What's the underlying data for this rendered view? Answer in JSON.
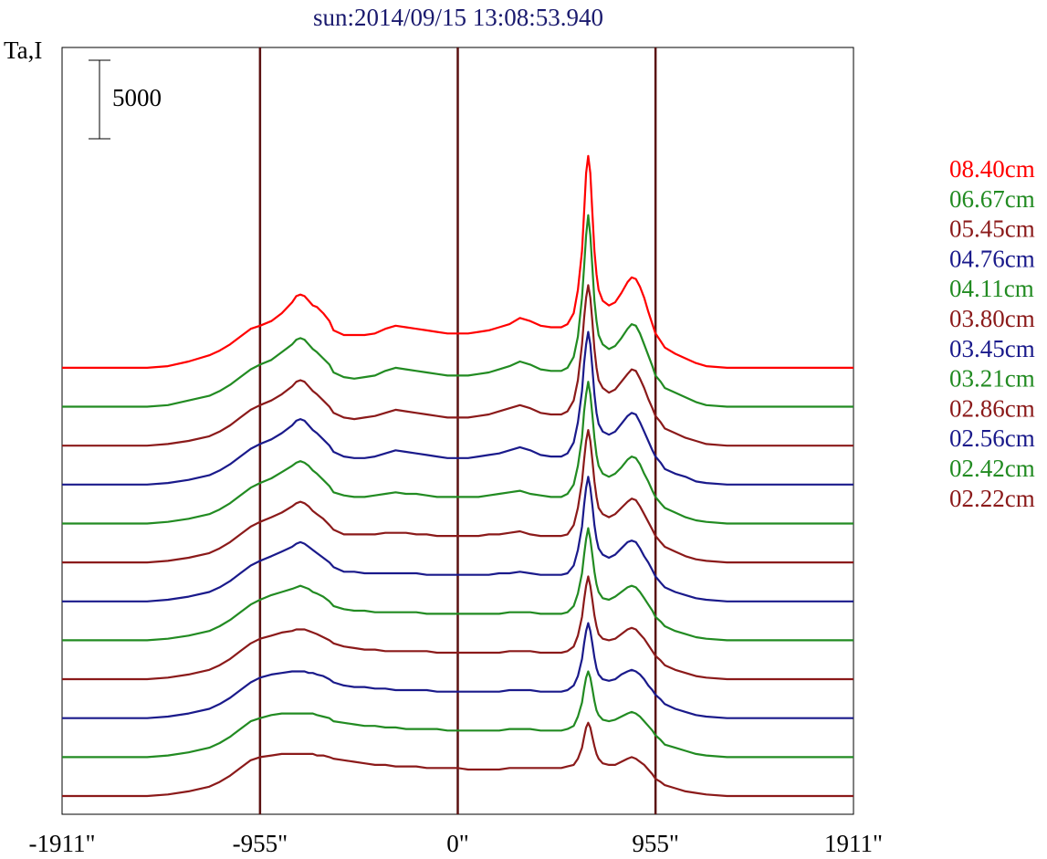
{
  "chart_data": {
    "type": "line",
    "title": "sun:2014/09/15 13:08:53.940",
    "ylabel": "Ta,I",
    "scale_bar_label": "5000",
    "x_tick_labels": [
      "-1911\"",
      "-955\"",
      "0\"",
      "955\"",
      "1911\""
    ],
    "x_ticks": [
      -1911,
      -955,
      0,
      955,
      1911
    ],
    "xlim": [
      -1911,
      1911
    ],
    "vlines": [
      -955,
      0,
      955
    ],
    "vline_color": "#5a1010",
    "grid": false,
    "legend_position": "right",
    "baseline_step": 2500,
    "scale_per_unit": 1.0,
    "x": [
      -1911,
      -1700,
      -1600,
      -1500,
      -1400,
      -1300,
      -1200,
      -1150,
      -1100,
      -1050,
      -1000,
      -955,
      -900,
      -850,
      -800,
      -780,
      -760,
      -740,
      -720,
      -700,
      -680,
      -650,
      -620,
      -600,
      -550,
      -500,
      -450,
      -400,
      -350,
      -300,
      -250,
      -200,
      -150,
      -100,
      -50,
      0,
      50,
      100,
      150,
      200,
      250,
      300,
      350,
      400,
      450,
      500,
      530,
      560,
      580,
      600,
      610,
      620,
      630,
      640,
      650,
      660,
      670,
      680,
      700,
      730,
      760,
      790,
      820,
      840,
      860,
      880,
      900,
      920,
      940,
      955,
      980,
      1000,
      1050,
      1100,
      1150,
      1200,
      1300,
      1400,
      1500,
      1600,
      1700,
      1800,
      1911
    ],
    "series": [
      {
        "name": "08.40cm",
        "color": "#ff0000",
        "values": [
          0,
          0,
          0,
          0,
          100,
          400,
          800,
          1100,
          1500,
          2000,
          2500,
          2700,
          3000,
          3500,
          4200,
          4600,
          4700,
          4600,
          4300,
          4000,
          3900,
          3500,
          3000,
          2400,
          2100,
          2100,
          2100,
          2200,
          2500,
          2700,
          2600,
          2500,
          2400,
          2300,
          2200,
          2200,
          2200,
          2300,
          2400,
          2600,
          2800,
          3200,
          3000,
          2700,
          2600,
          2600,
          2800,
          3500,
          5000,
          7500,
          10000,
          12500,
          13600,
          12500,
          10000,
          7500,
          6000,
          5000,
          4300,
          4000,
          4200,
          4800,
          5500,
          5800,
          5700,
          5200,
          4500,
          3600,
          2800,
          2200,
          1700,
          1300,
          900,
          600,
          300,
          100,
          0,
          0,
          0,
          0,
          0,
          0,
          0
        ]
      },
      {
        "name": "06.67cm",
        "color": "#228b22",
        "values": [
          0,
          0,
          0,
          0,
          100,
          400,
          700,
          1000,
          1400,
          1900,
          2400,
          2700,
          3000,
          3500,
          4000,
          4300,
          4400,
          4300,
          4000,
          3700,
          3500,
          3100,
          2700,
          2200,
          1900,
          1800,
          1900,
          2000,
          2300,
          2500,
          2400,
          2300,
          2200,
          2100,
          2000,
          2000,
          2000,
          2100,
          2200,
          2400,
          2600,
          2900,
          2700,
          2400,
          2300,
          2300,
          2500,
          3200,
          4500,
          7000,
          9000,
          11000,
          12300,
          11000,
          9000,
          6800,
          5500,
          4600,
          4000,
          3700,
          3900,
          4400,
          5000,
          5300,
          5200,
          4700,
          4000,
          3300,
          2600,
          2000,
          1600,
          1200,
          900,
          600,
          300,
          100,
          0,
          0,
          0,
          0,
          0,
          0,
          0
        ]
      },
      {
        "name": "05.45cm",
        "color": "#8b1a1a",
        "values": [
          0,
          0,
          0,
          0,
          100,
          300,
          600,
          900,
          1300,
          1800,
          2300,
          2600,
          2900,
          3300,
          3800,
          4100,
          4200,
          4100,
          3800,
          3500,
          3300,
          2900,
          2500,
          2100,
          1800,
          1700,
          1800,
          1900,
          2100,
          2300,
          2200,
          2100,
          2000,
          1900,
          1800,
          1800,
          1800,
          1900,
          2000,
          2200,
          2400,
          2600,
          2400,
          2100,
          2000,
          2000,
          2200,
          2900,
          4200,
          6500,
          8200,
          9500,
          10300,
          9500,
          8000,
          6200,
          5000,
          4200,
          3700,
          3400,
          3600,
          4100,
          4600,
          4900,
          4800,
          4300,
          3700,
          3000,
          2400,
          1900,
          1500,
          1100,
          800,
          500,
          300,
          100,
          0,
          0,
          0,
          0,
          0,
          0,
          0
        ]
      },
      {
        "name": "04.76cm",
        "color": "#1a1a8b",
        "values": [
          0,
          0,
          0,
          0,
          100,
          300,
          600,
          900,
          1300,
          1800,
          2300,
          2600,
          2900,
          3300,
          3800,
          4100,
          4200,
          4100,
          3800,
          3500,
          3300,
          2900,
          2500,
          2100,
          1800,
          1700,
          1700,
          1800,
          2000,
          2200,
          2100,
          2000,
          1900,
          1800,
          1700,
          1700,
          1700,
          1800,
          1900,
          2000,
          2200,
          2400,
          2200,
          1900,
          1800,
          1800,
          2000,
          2700,
          4000,
          6000,
          7800,
          9000,
          9800,
          9000,
          7500,
          5800,
          4600,
          3900,
          3400,
          3200,
          3400,
          3900,
          4400,
          4600,
          4500,
          4000,
          3400,
          2800,
          2200,
          1800,
          1400,
          1000,
          700,
          500,
          200,
          100,
          0,
          0,
          0,
          0,
          0,
          0,
          0
        ]
      },
      {
        "name": "04.11cm",
        "color": "#228b22",
        "values": [
          0,
          0,
          0,
          0,
          100,
          300,
          600,
          900,
          1300,
          1800,
          2300,
          2600,
          2900,
          3300,
          3700,
          3900,
          4000,
          3900,
          3700,
          3400,
          3200,
          2800,
          2400,
          2000,
          1800,
          1700,
          1700,
          1800,
          1900,
          2000,
          1900,
          1900,
          1800,
          1700,
          1700,
          1700,
          1700,
          1700,
          1800,
          1900,
          2000,
          2100,
          1900,
          1800,
          1700,
          1700,
          1900,
          2500,
          3700,
          5500,
          7200,
          8300,
          9100,
          8300,
          7000,
          5500,
          4400,
          3700,
          3200,
          3000,
          3200,
          3600,
          4100,
          4300,
          4200,
          3800,
          3200,
          2700,
          2100,
          1700,
          1300,
          1000,
          700,
          400,
          200,
          100,
          0,
          0,
          0,
          0,
          0,
          0,
          0
        ]
      },
      {
        "name": "03.80cm",
        "color": "#8b1a1a",
        "values": [
          0,
          0,
          0,
          0,
          100,
          300,
          600,
          900,
          1300,
          1800,
          2300,
          2600,
          2900,
          3200,
          3600,
          3800,
          3900,
          3800,
          3600,
          3300,
          3100,
          2800,
          2400,
          2100,
          1800,
          1800,
          1800,
          1800,
          1900,
          1900,
          1900,
          1800,
          1800,
          1700,
          1700,
          1700,
          1700,
          1700,
          1800,
          1800,
          1900,
          2000,
          1800,
          1700,
          1700,
          1700,
          1800,
          2400,
          3500,
          5200,
          6600,
          7800,
          8500,
          7800,
          6600,
          5200,
          4200,
          3500,
          3100,
          2900,
          3100,
          3500,
          3900,
          4100,
          4000,
          3600,
          3100,
          2600,
          2100,
          1700,
          1300,
          1000,
          700,
          400,
          200,
          100,
          0,
          0,
          0,
          0,
          0,
          0,
          0
        ]
      },
      {
        "name": "03.45cm",
        "color": "#1a1a8b",
        "values": [
          0,
          0,
          0,
          0,
          100,
          300,
          600,
          900,
          1300,
          1800,
          2300,
          2600,
          2900,
          3200,
          3500,
          3700,
          3800,
          3700,
          3500,
          3300,
          3100,
          2800,
          2500,
          2200,
          1900,
          1900,
          1800,
          1800,
          1800,
          1800,
          1800,
          1800,
          1700,
          1700,
          1700,
          1700,
          1700,
          1700,
          1700,
          1800,
          1800,
          1900,
          1800,
          1700,
          1700,
          1700,
          1800,
          2300,
          3300,
          4800,
          6200,
          7300,
          8000,
          7300,
          6200,
          4900,
          4000,
          3400,
          3000,
          2800,
          3000,
          3400,
          3800,
          3900,
          3800,
          3400,
          2900,
          2500,
          2000,
          1600,
          1200,
          900,
          600,
          400,
          200,
          100,
          0,
          0,
          0,
          0,
          0,
          0,
          0
        ]
      },
      {
        "name": "03.21cm",
        "color": "#228b22",
        "values": [
          0,
          0,
          0,
          0,
          100,
          300,
          600,
          900,
          1300,
          1800,
          2300,
          2600,
          2900,
          3100,
          3300,
          3400,
          3500,
          3400,
          3300,
          3100,
          3000,
          2800,
          2500,
          2200,
          2000,
          1900,
          1900,
          1800,
          1800,
          1800,
          1800,
          1800,
          1700,
          1700,
          1700,
          1700,
          1700,
          1700,
          1700,
          1700,
          1800,
          1800,
          1800,
          1700,
          1700,
          1700,
          1800,
          2200,
          3000,
          4300,
          5500,
          6500,
          7200,
          6500,
          5500,
          4400,
          3600,
          3100,
          2700,
          2600,
          2800,
          3100,
          3400,
          3500,
          3400,
          3100,
          2700,
          2300,
          1900,
          1500,
          1200,
          900,
          600,
          400,
          200,
          100,
          0,
          0,
          0,
          0,
          0,
          0,
          0
        ]
      },
      {
        "name": "02.86cm",
        "color": "#8b1a1a",
        "values": [
          0,
          0,
          0,
          0,
          100,
          300,
          600,
          900,
          1300,
          1800,
          2300,
          2600,
          2800,
          3000,
          3100,
          3200,
          3200,
          3200,
          3100,
          3000,
          2900,
          2700,
          2500,
          2300,
          2100,
          2000,
          1900,
          1900,
          1800,
          1800,
          1800,
          1800,
          1800,
          1700,
          1700,
          1700,
          1700,
          1700,
          1700,
          1700,
          1800,
          1800,
          1800,
          1700,
          1700,
          1700,
          1800,
          2100,
          2800,
          4000,
          5100,
          6000,
          6600,
          6000,
          5100,
          4100,
          3400,
          2900,
          2600,
          2500,
          2600,
          2900,
          3200,
          3300,
          3200,
          2900,
          2600,
          2200,
          1800,
          1500,
          1200,
          900,
          600,
          400,
          200,
          100,
          0,
          0,
          0,
          0,
          0,
          0,
          0
        ]
      },
      {
        "name": "02.56cm",
        "color": "#1a1a8b",
        "values": [
          0,
          0,
          0,
          0,
          100,
          300,
          600,
          900,
          1300,
          1800,
          2300,
          2600,
          2800,
          2900,
          3000,
          3000,
          3000,
          3000,
          2900,
          2900,
          2800,
          2700,
          2500,
          2300,
          2100,
          2000,
          2000,
          1900,
          1900,
          1800,
          1800,
          1800,
          1800,
          1700,
          1700,
          1700,
          1700,
          1700,
          1700,
          1700,
          1800,
          1800,
          1800,
          1700,
          1700,
          1700,
          1800,
          2100,
          2700,
          3800,
          4800,
          5600,
          6100,
          5600,
          4800,
          3900,
          3200,
          2800,
          2500,
          2400,
          2500,
          2800,
          3000,
          3100,
          3000,
          2800,
          2500,
          2100,
          1800,
          1500,
          1200,
          900,
          600,
          400,
          200,
          100,
          0,
          0,
          0,
          0,
          0,
          0,
          0
        ]
      },
      {
        "name": "02.42cm",
        "color": "#228b22",
        "values": [
          0,
          0,
          0,
          0,
          100,
          300,
          600,
          900,
          1300,
          1800,
          2300,
          2500,
          2700,
          2800,
          2800,
          2800,
          2800,
          2800,
          2800,
          2800,
          2700,
          2600,
          2500,
          2300,
          2200,
          2100,
          2000,
          2000,
          1900,
          1900,
          1800,
          1800,
          1800,
          1800,
          1700,
          1700,
          1700,
          1700,
          1700,
          1700,
          1800,
          1800,
          1800,
          1700,
          1700,
          1700,
          1800,
          2000,
          2600,
          3500,
          4400,
          5100,
          5500,
          5100,
          4400,
          3600,
          3000,
          2700,
          2400,
          2300,
          2400,
          2600,
          2800,
          2900,
          2800,
          2600,
          2300,
          2000,
          1700,
          1400,
          1100,
          800,
          600,
          400,
          200,
          100,
          0,
          0,
          0,
          0,
          0,
          0,
          0
        ]
      },
      {
        "name": "02.22cm",
        "color": "#8b1a1a",
        "values": [
          0,
          0,
          0,
          0,
          100,
          300,
          600,
          900,
          1300,
          1800,
          2300,
          2500,
          2600,
          2700,
          2700,
          2700,
          2700,
          2700,
          2700,
          2700,
          2600,
          2600,
          2500,
          2400,
          2300,
          2200,
          2100,
          2000,
          2000,
          1900,
          1900,
          1900,
          1800,
          1800,
          1800,
          1800,
          1700,
          1700,
          1700,
          1700,
          1800,
          1800,
          1800,
          1800,
          1800,
          1800,
          1900,
          2000,
          2400,
          3100,
          3800,
          4400,
          4700,
          4400,
          3800,
          3200,
          2700,
          2400,
          2100,
          2000,
          2000,
          2200,
          2400,
          2500,
          2400,
          2200,
          2000,
          1700,
          1400,
          1100,
          900,
          700,
          500,
          300,
          200,
          100,
          0,
          0,
          0,
          0,
          0,
          0,
          0
        ]
      }
    ]
  }
}
